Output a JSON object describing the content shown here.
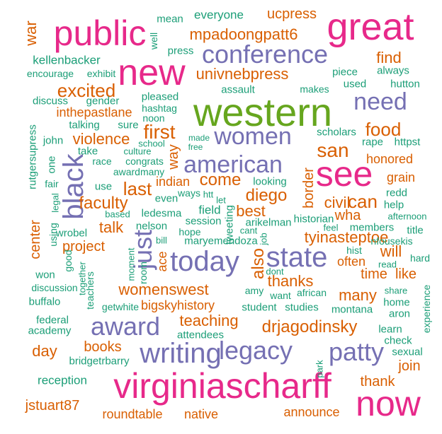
{
  "palette": {
    "teal": "#1b9e77",
    "orange": "#d95f02",
    "purple": "#7570b3",
    "pink": "#e7298a",
    "green": "#66a61e"
  },
  "words": [
    {
      "text": "western",
      "color": "green"
    },
    {
      "text": "virginiascharff",
      "color": "pink"
    },
    {
      "text": "public",
      "color": "pink"
    },
    {
      "text": "great",
      "color": "pink"
    },
    {
      "text": "new",
      "color": "pink"
    },
    {
      "text": "see",
      "color": "pink"
    },
    {
      "text": "now",
      "color": "pink"
    },
    {
      "text": "conference",
      "color": "purple"
    },
    {
      "text": "today",
      "color": "purple"
    },
    {
      "text": "state",
      "color": "purple"
    },
    {
      "text": "writing",
      "color": "purple"
    },
    {
      "text": "award",
      "color": "purple"
    },
    {
      "text": "legacy",
      "color": "purple"
    },
    {
      "text": "patty",
      "color": "purple"
    },
    {
      "text": "american",
      "color": "purple"
    },
    {
      "text": "women",
      "color": "purple"
    },
    {
      "text": "need",
      "color": "purple"
    },
    {
      "text": "black",
      "color": "purple"
    },
    {
      "text": "just",
      "color": "purple"
    },
    {
      "text": "mpadoongpatt6",
      "color": "orange"
    },
    {
      "text": "ucpress",
      "color": "orange"
    },
    {
      "text": "war",
      "color": "orange"
    },
    {
      "text": "excited",
      "color": "orange"
    },
    {
      "text": "find",
      "color": "orange"
    },
    {
      "text": "univnebpress",
      "color": "orange"
    },
    {
      "text": "food",
      "color": "orange"
    },
    {
      "text": "san",
      "color": "orange"
    },
    {
      "text": "first",
      "color": "orange"
    },
    {
      "text": "violence",
      "color": "orange"
    },
    {
      "text": "inthepastlane",
      "color": "orange"
    },
    {
      "text": "last",
      "color": "orange"
    },
    {
      "text": "come",
      "color": "orange"
    },
    {
      "text": "diego",
      "color": "orange"
    },
    {
      "text": "faculty",
      "color": "orange"
    },
    {
      "text": "best",
      "color": "orange"
    },
    {
      "text": "talk",
      "color": "orange"
    },
    {
      "text": "can",
      "color": "orange"
    },
    {
      "text": "civil",
      "color": "orange"
    },
    {
      "text": "wha",
      "color": "orange"
    },
    {
      "text": "tyinasteptoe",
      "color": "orange"
    },
    {
      "text": "womenswest",
      "color": "orange"
    },
    {
      "text": "thanks",
      "color": "orange"
    },
    {
      "text": "many",
      "color": "orange"
    },
    {
      "text": "will",
      "color": "orange"
    },
    {
      "text": "like",
      "color": "orange"
    },
    {
      "text": "time",
      "color": "orange"
    },
    {
      "text": "drjagodinsky",
      "color": "orange"
    },
    {
      "text": "teaching",
      "color": "orange"
    },
    {
      "text": "project",
      "color": "orange"
    },
    {
      "text": "books",
      "color": "orange"
    },
    {
      "text": "day",
      "color": "orange"
    },
    {
      "text": "thank",
      "color": "orange"
    },
    {
      "text": "join",
      "color": "orange"
    },
    {
      "text": "jstuart87",
      "color": "orange"
    },
    {
      "text": "roundtable",
      "color": "orange"
    },
    {
      "text": "native",
      "color": "orange"
    },
    {
      "text": "announce",
      "color": "orange"
    },
    {
      "text": "grain",
      "color": "orange"
    },
    {
      "text": "honored",
      "color": "orange"
    },
    {
      "text": "indian",
      "color": "orange"
    },
    {
      "text": "bigskyhistory",
      "color": "orange"
    },
    {
      "text": "center",
      "color": "orange"
    },
    {
      "text": "way",
      "color": "orange"
    },
    {
      "text": "also",
      "color": "orange"
    },
    {
      "text": "border",
      "color": "orange"
    },
    {
      "text": "ace",
      "color": "orange"
    },
    {
      "text": "often",
      "color": "orange"
    },
    {
      "text": "mean",
      "color": "teal"
    },
    {
      "text": "everyone",
      "color": "teal"
    },
    {
      "text": "well",
      "color": "teal"
    },
    {
      "text": "press",
      "color": "teal"
    },
    {
      "text": "kellenbacker",
      "color": "teal"
    },
    {
      "text": "encourage",
      "color": "teal"
    },
    {
      "text": "exhibit",
      "color": "teal"
    },
    {
      "text": "piece",
      "color": "teal"
    },
    {
      "text": "always",
      "color": "teal"
    },
    {
      "text": "used",
      "color": "teal"
    },
    {
      "text": "hutton",
      "color": "teal"
    },
    {
      "text": "assault",
      "color": "teal"
    },
    {
      "text": "makes",
      "color": "teal"
    },
    {
      "text": "pleased",
      "color": "teal"
    },
    {
      "text": "discuss",
      "color": "teal"
    },
    {
      "text": "gender",
      "color": "teal"
    },
    {
      "text": "hashtag",
      "color": "teal"
    },
    {
      "text": "noon",
      "color": "teal"
    },
    {
      "text": "talking",
      "color": "teal"
    },
    {
      "text": "sure",
      "color": "teal"
    },
    {
      "text": "scholars",
      "color": "teal"
    },
    {
      "text": "rutgersupress",
      "color": "teal"
    },
    {
      "text": "john",
      "color": "teal"
    },
    {
      "text": "school",
      "color": "teal"
    },
    {
      "text": "made",
      "color": "teal"
    },
    {
      "text": "free",
      "color": "teal"
    },
    {
      "text": "rape",
      "color": "teal"
    },
    {
      "text": "httpst",
      "color": "teal"
    },
    {
      "text": "take",
      "color": "teal"
    },
    {
      "text": "culture",
      "color": "teal"
    },
    {
      "text": "one",
      "color": "teal"
    },
    {
      "text": "race",
      "color": "teal"
    },
    {
      "text": "congrats",
      "color": "teal"
    },
    {
      "text": "awardmany",
      "color": "teal"
    },
    {
      "text": "fair",
      "color": "teal"
    },
    {
      "text": "use",
      "color": "teal"
    },
    {
      "text": "even",
      "color": "teal"
    },
    {
      "text": "looking",
      "color": "teal"
    },
    {
      "text": "redd",
      "color": "teal"
    },
    {
      "text": "ways",
      "color": "teal"
    },
    {
      "text": "htt",
      "color": "teal"
    },
    {
      "text": "let",
      "color": "teal"
    },
    {
      "text": "help",
      "color": "teal"
    },
    {
      "text": "legal",
      "color": "teal"
    },
    {
      "text": "based",
      "color": "teal"
    },
    {
      "text": "ledesma",
      "color": "teal"
    },
    {
      "text": "field",
      "color": "teal"
    },
    {
      "text": "historian",
      "color": "teal"
    },
    {
      "text": "afternoon",
      "color": "teal"
    },
    {
      "text": "using",
      "color": "teal"
    },
    {
      "text": "nelson",
      "color": "teal"
    },
    {
      "text": "session",
      "color": "teal"
    },
    {
      "text": "arikelman",
      "color": "teal"
    },
    {
      "text": "feel",
      "color": "teal"
    },
    {
      "text": "members",
      "color": "teal"
    },
    {
      "text": "title",
      "color": "teal"
    },
    {
      "text": "wrobel",
      "color": "teal"
    },
    {
      "text": "hope",
      "color": "teal"
    },
    {
      "text": "tweeting",
      "color": "teal"
    },
    {
      "text": "cant",
      "color": "teal"
    },
    {
      "text": "bill",
      "color": "teal"
    },
    {
      "text": "maryemendoza",
      "color": "teal"
    },
    {
      "text": "job",
      "color": "teal"
    },
    {
      "text": "hist",
      "color": "teal"
    },
    {
      "text": "nfousekis",
      "color": "teal"
    },
    {
      "text": "good",
      "color": "teal"
    },
    {
      "text": "moment",
      "color": "teal"
    },
    {
      "text": "room",
      "color": "teal"
    },
    {
      "text": "hard",
      "color": "teal"
    },
    {
      "text": "won",
      "color": "teal"
    },
    {
      "text": "dont",
      "color": "teal"
    },
    {
      "text": "read",
      "color": "teal"
    },
    {
      "text": "discussion",
      "color": "teal"
    },
    {
      "text": "together",
      "color": "teal"
    },
    {
      "text": "amy",
      "color": "teal"
    },
    {
      "text": "want",
      "color": "teal"
    },
    {
      "text": "african",
      "color": "teal"
    },
    {
      "text": "share",
      "color": "teal"
    },
    {
      "text": "buffalo",
      "color": "teal"
    },
    {
      "text": "teachers",
      "color": "teal"
    },
    {
      "text": "getwhite",
      "color": "teal"
    },
    {
      "text": "student",
      "color": "teal"
    },
    {
      "text": "studies",
      "color": "teal"
    },
    {
      "text": "home",
      "color": "teal"
    },
    {
      "text": "federal",
      "color": "teal"
    },
    {
      "text": "montana",
      "color": "teal"
    },
    {
      "text": "aron",
      "color": "teal"
    },
    {
      "text": "experience",
      "color": "teal"
    },
    {
      "text": "academy",
      "color": "teal"
    },
    {
      "text": "attendees",
      "color": "teal"
    },
    {
      "text": "learn",
      "color": "teal"
    },
    {
      "text": "check",
      "color": "teal"
    },
    {
      "text": "bridgetrbarry",
      "color": "teal"
    },
    {
      "text": "park",
      "color": "teal"
    },
    {
      "text": "sexual",
      "color": "teal"
    },
    {
      "text": "reception",
      "color": "teal"
    }
  ]
}
